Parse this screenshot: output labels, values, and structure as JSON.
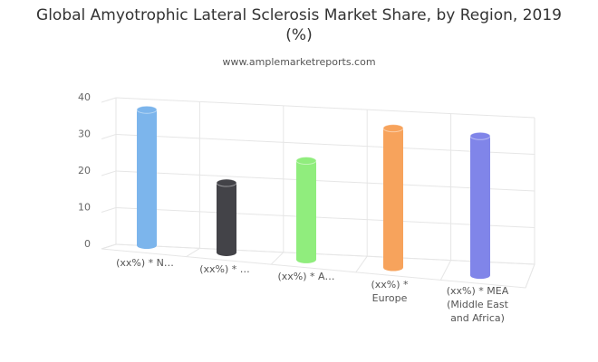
{
  "chart_data": {
    "type": "cylinder",
    "title": "Global Amyotrophic Lateral Sclerosis Market Share, by Region, 2019 (%)",
    "subtitle": "www.amplemarketreports.com",
    "categories": [
      "(xx%) * N…",
      "(xx%) * …",
      "(xx%) * A…",
      "(xx%) * Europe",
      "(xx%) * MEA (Middle East and Africa)"
    ],
    "series": [
      {
        "name": "Market Share",
        "values": [
          37,
          19,
          27,
          38,
          38
        ]
      }
    ],
    "colors": [
      "#7cb5ec",
      "#434348",
      "#90ed7d",
      "#f7a35c",
      "#8085e9"
    ],
    "ylim": [
      0,
      40
    ],
    "yticks": [
      0,
      10,
      20,
      30,
      40
    ],
    "grid": true
  }
}
